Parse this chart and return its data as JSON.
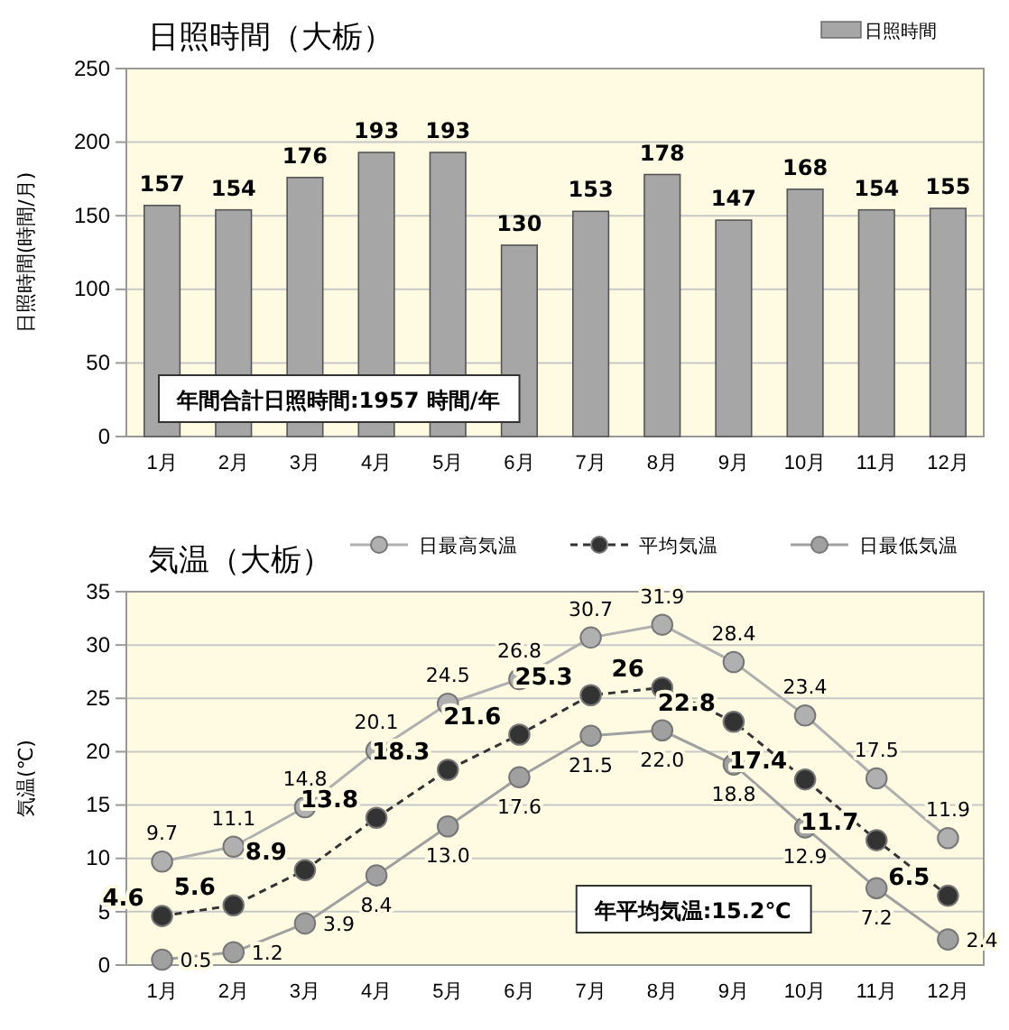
{
  "chart_data": [
    {
      "type": "bar",
      "title": "日照時間（大栃）",
      "ylabel": "日照時間(時間/月)",
      "categories": [
        "1月",
        "2月",
        "3月",
        "4月",
        "5月",
        "6月",
        "7月",
        "8月",
        "9月",
        "10月",
        "11月",
        "12月"
      ],
      "series": [
        {
          "name": "日照時間",
          "color": "#a6a6a6",
          "values": [
            157,
            154,
            176,
            193,
            193,
            130,
            153,
            178,
            147,
            168,
            154,
            155
          ]
        }
      ],
      "ylim": [
        0,
        250
      ],
      "yticks": [
        0,
        50,
        100,
        150,
        200,
        250
      ],
      "grid": "y",
      "legend": "top right",
      "data_labels": true,
      "annotations": [
        "年間合計日照時間:1957 時間/年"
      ]
    },
    {
      "type": "line",
      "title": "気温（大栃）",
      "ylabel": "気温(℃)",
      "categories": [
        "1月",
        "2月",
        "3月",
        "4月",
        "5月",
        "6月",
        "7月",
        "8月",
        "9月",
        "10月",
        "11月",
        "12月"
      ],
      "series": [
        {
          "name": "日最高気温",
          "color": "#b0b0b0",
          "line_style": "solid",
          "values": [
            9.7,
            11.1,
            14.8,
            20.1,
            24.5,
            26.8,
            30.7,
            31.9,
            28.4,
            23.4,
            17.5,
            11.9
          ],
          "value_labels": [
            "9.7",
            "11.1",
            "14.8",
            "20.1",
            "24.5",
            "26.8",
            "30.7",
            "31.9",
            "28.4",
            "23.4",
            "17.5",
            "11.9"
          ]
        },
        {
          "name": "平均気温",
          "color": "#333333",
          "line_style": "dashed",
          "values": [
            4.6,
            5.6,
            8.9,
            13.8,
            18.3,
            21.6,
            25.3,
            26,
            22.8,
            17.4,
            11.7,
            6.5
          ],
          "value_labels": [
            "4.6",
            "5.6",
            "8.9",
            "13.8",
            "18.3",
            "21.6",
            "25.3",
            "26",
            "22.8",
            "17.4",
            "11.7",
            "6.5"
          ]
        },
        {
          "name": "日最低気温",
          "color": "#a0a0a0",
          "line_style": "solid",
          "values": [
            0.5,
            1.2,
            3.9,
            8.4,
            13.0,
            17.6,
            21.5,
            22.0,
            18.8,
            12.9,
            7.2,
            2.4
          ],
          "value_labels": [
            "0.5",
            "1.2",
            "3.9",
            "8.4",
            "13.0",
            "17.6",
            "21.5",
            "22.0",
            "18.8",
            "12.9",
            "7.2",
            "2.4"
          ]
        }
      ],
      "ylim": [
        0,
        35
      ],
      "yticks": [
        0,
        5,
        10,
        15,
        20,
        25,
        30,
        35
      ],
      "grid": "y",
      "legend": "top",
      "marker": "circle",
      "annotations": [
        "年平均気温:15.2℃"
      ]
    }
  ]
}
